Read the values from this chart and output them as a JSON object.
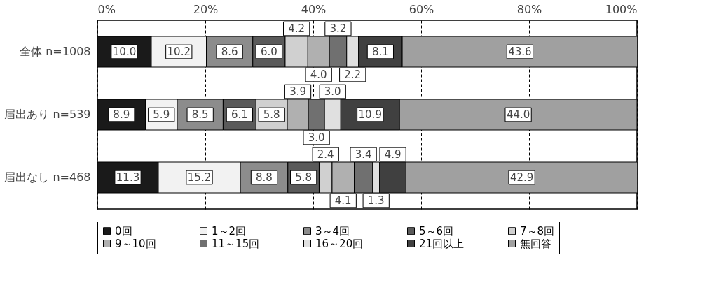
{
  "chart_data": {
    "type": "bar",
    "orientation": "horizontal",
    "stacked": true,
    "grid": "x",
    "legend": "bottom",
    "categories": [
      "全体 n=1008",
      "届出あり n=539",
      "届出なし n=468"
    ],
    "xlim": [
      0,
      100
    ],
    "xticks": [
      {
        "value": 0,
        "label": "0%"
      },
      {
        "value": 20,
        "label": "20%"
      },
      {
        "value": 40,
        "label": "40%"
      },
      {
        "value": 60,
        "label": "60%"
      },
      {
        "value": 80,
        "label": "80%"
      },
      {
        "value": 100,
        "label": "100%"
      }
    ],
    "series": [
      {
        "name": "0回",
        "color": "#1a1a1a",
        "values": [
          10.0,
          8.9,
          11.3
        ],
        "value_labels": [
          "10.0",
          "8.9",
          "11.3"
        ]
      },
      {
        "name": "1～2回",
        "color": "#f2f2f2",
        "values": [
          10.2,
          5.9,
          15.2
        ],
        "value_labels": [
          "10.2",
          "5.9",
          "15.2"
        ]
      },
      {
        "name": "3～4回",
        "color": "#8c8c8c",
        "values": [
          8.6,
          8.5,
          8.8
        ],
        "value_labels": [
          "8.6",
          "8.5",
          "8.8"
        ]
      },
      {
        "name": "5～6回",
        "color": "#5a5a5a",
        "values": [
          6.0,
          6.1,
          5.8
        ],
        "value_labels": [
          "6.0",
          "6.1",
          "5.8"
        ]
      },
      {
        "name": "7～8回",
        "color": "#d0d0d0",
        "values": [
          4.2,
          5.8,
          2.4
        ],
        "value_labels": [
          "4.2",
          "5.8",
          "2.4"
        ]
      },
      {
        "name": "9～10回",
        "color": "#b0b0b0",
        "values": [
          4.0,
          3.9,
          4.1
        ],
        "value_labels": [
          "4.0",
          "3.9",
          "4.1"
        ]
      },
      {
        "name": "11～15回",
        "color": "#707070",
        "values": [
          3.2,
          3.0,
          3.4
        ],
        "value_labels": [
          "3.2",
          "3.0",
          "3.4"
        ]
      },
      {
        "name": "16～20回",
        "color": "#e0e0e0",
        "values": [
          2.2,
          3.0,
          1.3
        ],
        "value_labels": [
          "2.2",
          "3.0",
          "1.3"
        ]
      },
      {
        "name": "21回以上",
        "color": "#404040",
        "values": [
          8.1,
          10.9,
          4.9
        ],
        "value_labels": [
          "8.1",
          "10.9",
          "4.9"
        ]
      },
      {
        "name": "無回答",
        "color": "#a0a0a0",
        "values": [
          43.6,
          44.0,
          42.9
        ],
        "value_labels": [
          "43.6",
          "44.0",
          "42.9"
        ]
      }
    ]
  }
}
